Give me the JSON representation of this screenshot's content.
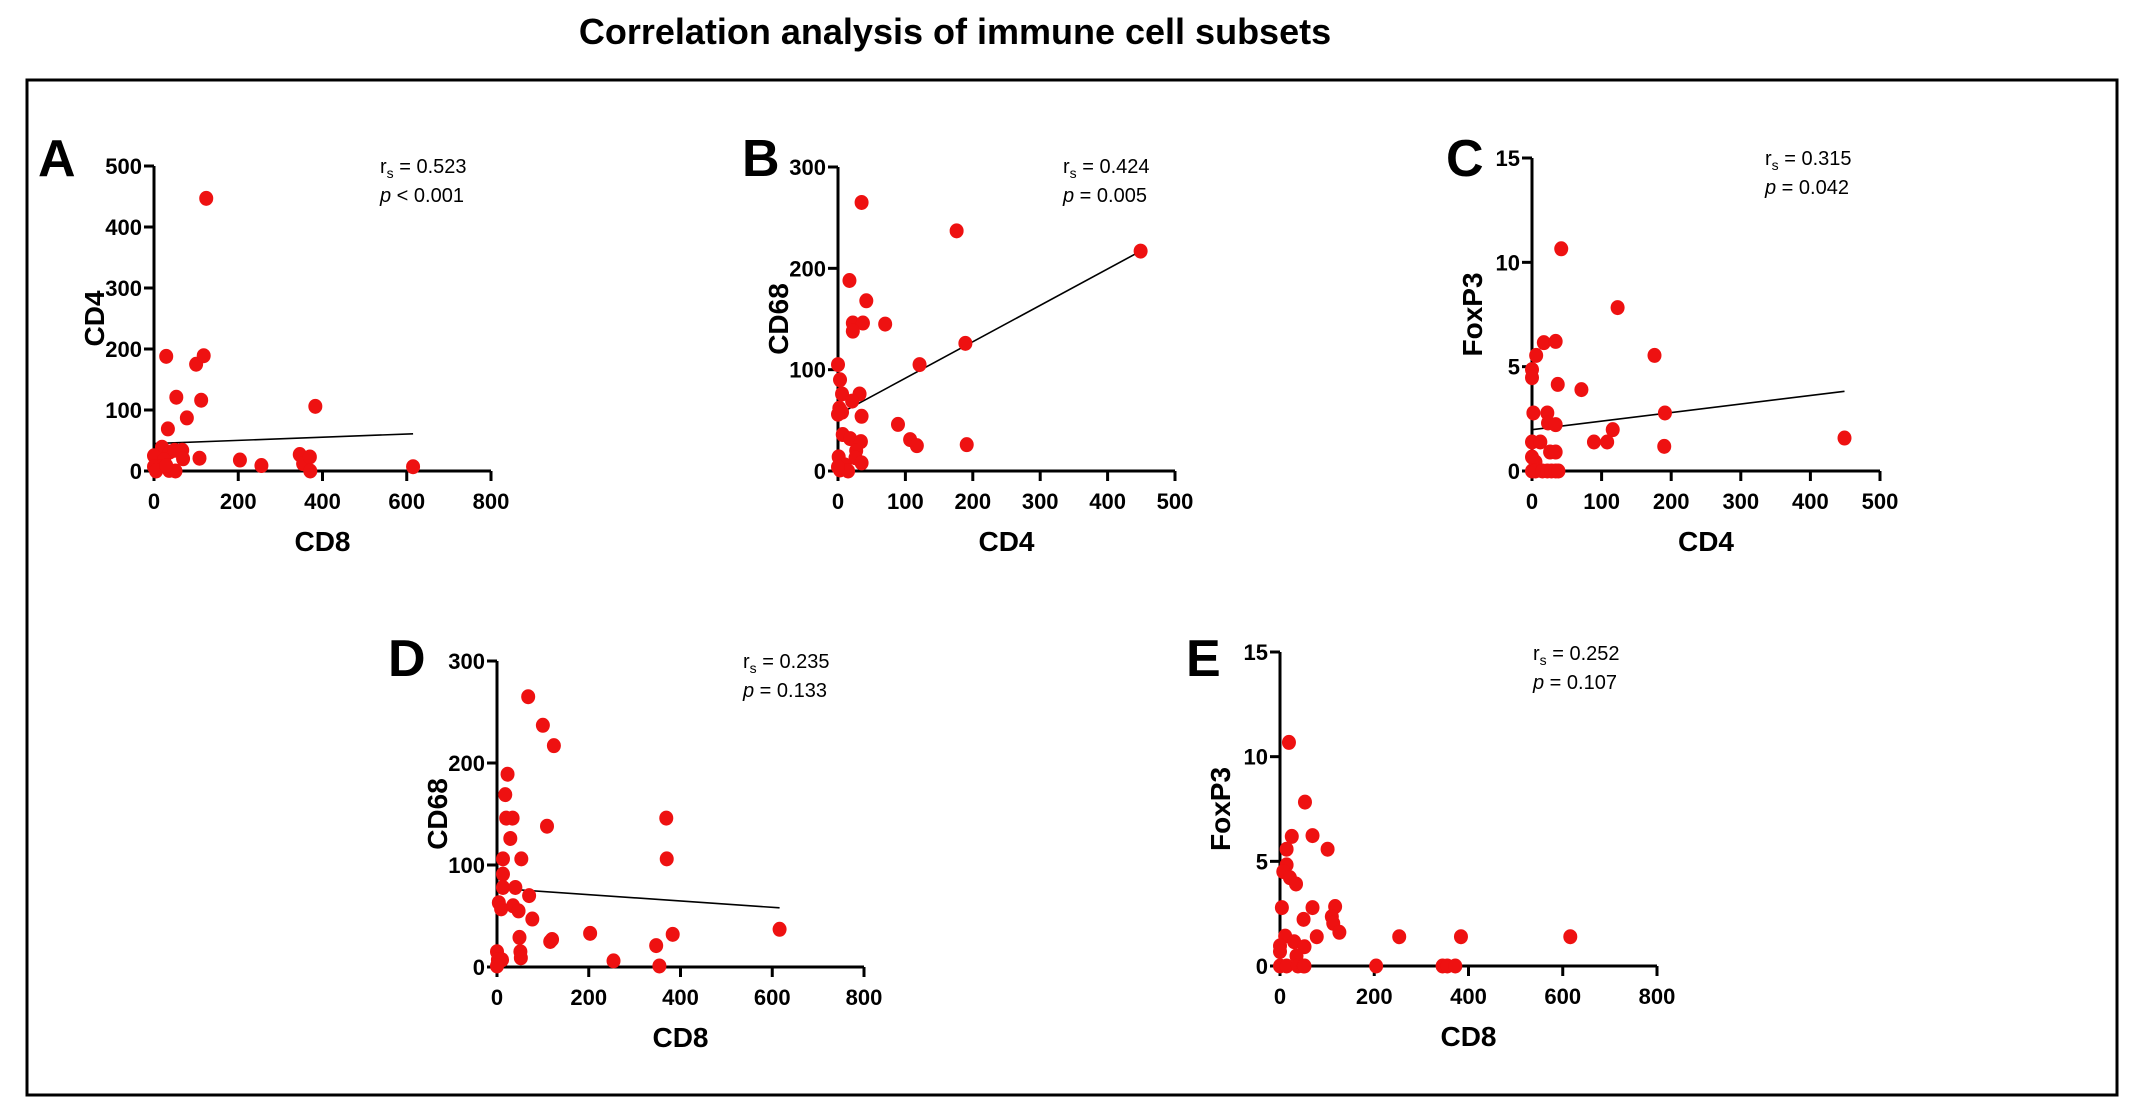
{
  "title": "Correlation analysis of immune cell subsets",
  "colors": {
    "point": "#ee1111",
    "axis": "#000000",
    "line": "#000000",
    "frame": "#000000"
  },
  "chart_data": [
    {
      "type": "scatter",
      "panel": "A",
      "xlabel": "CD8",
      "ylabel": "CD4",
      "xlim": [
        0,
        800
      ],
      "ylim": [
        0,
        500
      ],
      "xticks": [
        0,
        200,
        400,
        600,
        800
      ],
      "yticks": [
        0,
        100,
        200,
        300,
        400,
        500
      ],
      "stats": {
        "r": "r",
        "r_sub": "s",
        "r_value": " = 0.523",
        "p": "p",
        "p_value": " < 0.001"
      },
      "regression": [
        [
          0,
          45
        ],
        [
          615,
          61
        ]
      ],
      "points": [
        [
          124,
          447
        ],
        [
          29,
          188
        ],
        [
          100,
          175
        ],
        [
          118,
          189
        ],
        [
          53,
          121
        ],
        [
          112,
          116
        ],
        [
          383,
          106
        ],
        [
          78,
          87
        ],
        [
          33,
          69
        ],
        [
          19,
          39
        ],
        [
          0,
          25
        ],
        [
          37,
          31
        ],
        [
          49,
          34
        ],
        [
          67,
          34
        ],
        [
          69,
          20
        ],
        [
          108,
          21
        ],
        [
          204,
          18
        ],
        [
          255,
          9
        ],
        [
          346,
          27
        ],
        [
          354,
          12
        ],
        [
          370,
          23
        ],
        [
          371,
          0
        ],
        [
          615,
          7
        ],
        [
          24,
          18
        ],
        [
          13,
          7
        ],
        [
          0,
          7
        ],
        [
          5,
          0
        ],
        [
          36,
          1
        ],
        [
          51,
          0
        ],
        [
          29,
          9
        ]
      ]
    },
    {
      "type": "scatter",
      "panel": "B",
      "xlabel": "CD4",
      "ylabel": "CD68",
      "xlim": [
        0,
        500
      ],
      "ylim": [
        0,
        300
      ],
      "xticks": [
        0,
        100,
        200,
        300,
        400,
        500
      ],
      "yticks": [
        0,
        100,
        200,
        300
      ],
      "stats": {
        "r": "r",
        "r_sub": "s",
        "r_value": " = 0.424",
        "p": "p",
        "p_value": " = 0.005"
      },
      "regression": [
        [
          12,
          60
        ],
        [
          449,
          217
        ]
      ],
      "points": [
        [
          35,
          265
        ],
        [
          176,
          237
        ],
        [
          449,
          217
        ],
        [
          17,
          188
        ],
        [
          42,
          168
        ],
        [
          22,
          146
        ],
        [
          37,
          146
        ],
        [
          70,
          145
        ],
        [
          22,
          138
        ],
        [
          189,
          126
        ],
        [
          121,
          105
        ],
        [
          0,
          105
        ],
        [
          3,
          90
        ],
        [
          6,
          76
        ],
        [
          32,
          76
        ],
        [
          21,
          69
        ],
        [
          2,
          62
        ],
        [
          6,
          58
        ],
        [
          0,
          56
        ],
        [
          35,
          54
        ],
        [
          89,
          46
        ],
        [
          7,
          36
        ],
        [
          18,
          32
        ],
        [
          107,
          31
        ],
        [
          34,
          29
        ],
        [
          117,
          25
        ],
        [
          191,
          26
        ],
        [
          27,
          20
        ],
        [
          26,
          13
        ],
        [
          35,
          8
        ],
        [
          1,
          14
        ],
        [
          10,
          6
        ],
        [
          3,
          1
        ],
        [
          15,
          0
        ],
        [
          0,
          4
        ]
      ]
    },
    {
      "type": "scatter",
      "panel": "C",
      "xlabel": "CD4",
      "ylabel": "FoxP3",
      "xlim": [
        0,
        500
      ],
      "ylim": [
        0,
        15
      ],
      "xticks": [
        0,
        100,
        200,
        300,
        400,
        500
      ],
      "yticks": [
        0,
        5,
        10,
        15
      ],
      "stats": {
        "r": "r",
        "r_sub": "s",
        "r_value": " = 0.315",
        "p": "p",
        "p_value": " = 0.042"
      },
      "regression": [
        [
          0,
          1.98
        ],
        [
          449,
          3.82
        ]
      ],
      "points": [
        [
          42,
          10.65
        ],
        [
          123,
          7.83
        ],
        [
          17,
          6.15
        ],
        [
          34,
          6.21
        ],
        [
          6,
          5.54
        ],
        [
          176,
          5.54
        ],
        [
          0,
          4.86
        ],
        [
          0,
          4.47
        ],
        [
          37,
          4.15
        ],
        [
          71,
          3.9
        ],
        [
          2,
          2.78
        ],
        [
          22,
          2.78
        ],
        [
          191,
          2.78
        ],
        [
          23,
          2.3
        ],
        [
          34,
          2.22
        ],
        [
          116,
          1.98
        ],
        [
          0,
          1.39
        ],
        [
          12,
          1.39
        ],
        [
          89,
          1.39
        ],
        [
          108,
          1.39
        ],
        [
          449,
          1.58
        ],
        [
          190,
          1.18
        ],
        [
          26,
          0.91
        ],
        [
          34,
          0.91
        ],
        [
          0,
          0.67
        ],
        [
          5,
          0.43
        ],
        [
          0,
          0
        ],
        [
          5,
          0
        ],
        [
          15,
          0
        ],
        [
          22,
          0
        ],
        [
          28,
          0
        ],
        [
          34,
          0
        ],
        [
          38,
          0
        ]
      ]
    },
    {
      "type": "scatter",
      "panel": "D",
      "xlabel": "CD8",
      "ylabel": "CD68",
      "xlim": [
        0,
        800
      ],
      "ylim": [
        0,
        300
      ],
      "xticks": [
        0,
        200,
        400,
        600,
        800
      ],
      "yticks": [
        0,
        100,
        200,
        300
      ],
      "stats": {
        "r": "r",
        "r_sub": "s",
        "r_value": " = 0.235",
        "p": "p",
        "p_value": " = 0.133"
      },
      "regression": [
        [
          4,
          77
        ],
        [
          616,
          58
        ]
      ],
      "points": [
        [
          68,
          265
        ],
        [
          100,
          237
        ],
        [
          124,
          217
        ],
        [
          23,
          189
        ],
        [
          18,
          169
        ],
        [
          20,
          146
        ],
        [
          34,
          146
        ],
        [
          109,
          138
        ],
        [
          369,
          146
        ],
        [
          29,
          126
        ],
        [
          13,
          106
        ],
        [
          53,
          106
        ],
        [
          370,
          106
        ],
        [
          13,
          91
        ],
        [
          13,
          78
        ],
        [
          40,
          78
        ],
        [
          70,
          70
        ],
        [
          4,
          63
        ],
        [
          9,
          57
        ],
        [
          35,
          60
        ],
        [
          47,
          55
        ],
        [
          77,
          47
        ],
        [
          49,
          29
        ],
        [
          203,
          33
        ],
        [
          383,
          32
        ],
        [
          616,
          37
        ],
        [
          116,
          25
        ],
        [
          120,
          27
        ],
        [
          347,
          21
        ],
        [
          51,
          15
        ],
        [
          52,
          9
        ],
        [
          254,
          6
        ],
        [
          354,
          1
        ],
        [
          0,
          15
        ],
        [
          2,
          7
        ],
        [
          11,
          7
        ],
        [
          0,
          1
        ]
      ]
    },
    {
      "type": "scatter",
      "panel": "E",
      "xlabel": "CD8",
      "ylabel": "FoxP3",
      "xlim": [
        0,
        800
      ],
      "ylim": [
        0,
        15
      ],
      "xticks": [
        0,
        200,
        400,
        600,
        800
      ],
      "yticks": [
        0,
        5,
        10,
        15
      ],
      "stats": {
        "r": "r",
        "r_sub": "s",
        "r_value": " = 0.252",
        "p": "p",
        "p_value": " = 0.107"
      },
      "regression": null,
      "points": [
        [
          19,
          10.68
        ],
        [
          53,
          7.83
        ],
        [
          25,
          6.19
        ],
        [
          69,
          6.23
        ],
        [
          14,
          5.58
        ],
        [
          101,
          5.58
        ],
        [
          14,
          4.83
        ],
        [
          7,
          4.51
        ],
        [
          21,
          4.22
        ],
        [
          34,
          3.92
        ],
        [
          4,
          2.79
        ],
        [
          69,
          2.79
        ],
        [
          117,
          2.84
        ],
        [
          110,
          2.36
        ],
        [
          50,
          2.23
        ],
        [
          113,
          2.04
        ],
        [
          126,
          1.61
        ],
        [
          11,
          1.43
        ],
        [
          78,
          1.4
        ],
        [
          253,
          1.4
        ],
        [
          384,
          1.4
        ],
        [
          616,
          1.4
        ],
        [
          30,
          1.16
        ],
        [
          52,
          0.92
        ],
        [
          0,
          0.96
        ],
        [
          0,
          0.69
        ],
        [
          35,
          0.48
        ],
        [
          0,
          0
        ],
        [
          14,
          0
        ],
        [
          38,
          0
        ],
        [
          50,
          0
        ],
        [
          52,
          0
        ],
        [
          204,
          0
        ],
        [
          345,
          0
        ],
        [
          355,
          0
        ],
        [
          372,
          0
        ]
      ]
    }
  ]
}
